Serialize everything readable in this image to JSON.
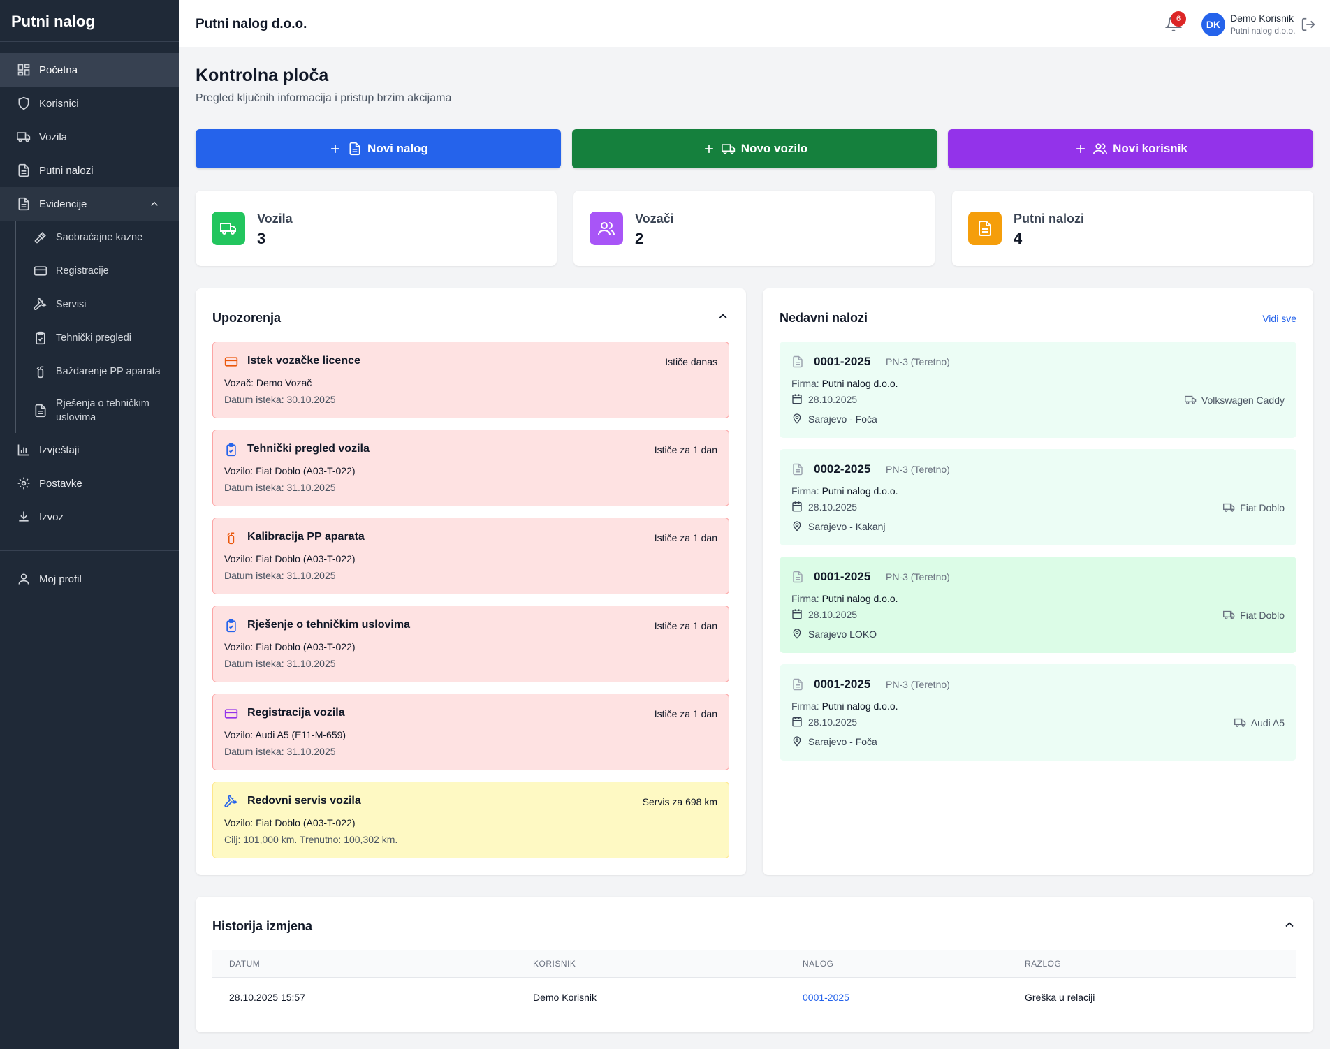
{
  "sidebar": {
    "brand": "Putni nalog",
    "items": [
      {
        "label": "Početna",
        "icon": "dashboard-icon"
      },
      {
        "label": "Korisnici",
        "icon": "shield-icon"
      },
      {
        "label": "Vozila",
        "icon": "truck-icon"
      },
      {
        "label": "Putni nalozi",
        "icon": "document-icon"
      },
      {
        "label": "Evidencije",
        "icon": "document-icon"
      }
    ],
    "sub_items": [
      {
        "label": "Saobraćajne kazne",
        "icon": "gavel-icon"
      },
      {
        "label": "Registracije",
        "icon": "credit-card-icon"
      },
      {
        "label": "Servisi",
        "icon": "wrench-icon"
      },
      {
        "label": "Tehnički pregledi",
        "icon": "clipboard-check-icon"
      },
      {
        "label": "Baždarenje PP aparata",
        "icon": "fire-extinguisher-icon"
      },
      {
        "label": "Rješenja o tehničkim uslovima",
        "icon": "document-icon"
      }
    ],
    "bottom_items": [
      {
        "label": "Izvještaji",
        "icon": "bar-chart-icon"
      },
      {
        "label": "Postavke",
        "icon": "gear-icon"
      },
      {
        "label": "Izvoz",
        "icon": "download-icon"
      }
    ],
    "profile": {
      "label": "Moj profil",
      "icon": "user-icon"
    }
  },
  "header": {
    "title": "Putni nalog d.o.o.",
    "notification_count": "6",
    "avatar_initials": "DK",
    "user_name": "Demo Korisnik",
    "user_company": "Putni nalog d.o.o."
  },
  "page": {
    "title": "Kontrolna ploča",
    "subtitle": "Pregled ključnih informacija i pristup brzim akcijama"
  },
  "actions": {
    "new_order": "Novi nalog",
    "new_vehicle": "Novo vozilo",
    "new_user": "Novi korisnik"
  },
  "stats": [
    {
      "label": "Vozila",
      "value": "3",
      "color": "#22c55e"
    },
    {
      "label": "Vozači",
      "value": "2",
      "color": "#a855f7"
    },
    {
      "label": "Putni nalozi",
      "value": "4",
      "color": "#f59e0b"
    }
  ],
  "warnings": {
    "title": "Upozorenja",
    "items": [
      {
        "title": "Istek vozačke licence",
        "right": "Ističe danas",
        "line1": "Vozač: Demo Vozač",
        "line2": "Datum isteka: 30.10.2025",
        "icon": "credit-card-icon",
        "tone": "red"
      },
      {
        "title": "Tehnički pregled vozila",
        "right": "Ističe za 1 dan",
        "line1": "Vozilo: Fiat Doblo (A03-T-022)",
        "line2": "Datum isteka: 31.10.2025",
        "icon": "clipboard-check-icon",
        "tone": "red"
      },
      {
        "title": "Kalibracija PP aparata",
        "right": "Ističe za 1 dan",
        "line1": "Vozilo: Fiat Doblo (A03-T-022)",
        "line2": "Datum isteka: 31.10.2025",
        "icon": "fire-extinguisher-icon",
        "tone": "red"
      },
      {
        "title": "Rješenje o tehničkim uslovima",
        "right": "Ističe za 1 dan",
        "line1": "Vozilo: Fiat Doblo (A03-T-022)",
        "line2": "Datum isteka: 31.10.2025",
        "icon": "clipboard-check-icon",
        "tone": "red"
      },
      {
        "title": "Registracija vozila",
        "right": "Ističe za 1 dan",
        "line1": "Vozilo: Audi A5 (E11-M-659)",
        "line2": "Datum isteka: 31.10.2025",
        "icon": "credit-card-icon",
        "tone": "red"
      },
      {
        "title": "Redovni servis vozila",
        "right": "Servis za 698 km",
        "line1": "Vozilo: Fiat Doblo (A03-T-022)",
        "line2": "Cilj: 101,000 km. Trenutno: 100,302 km.",
        "icon": "wrench-icon",
        "tone": "yellow"
      }
    ]
  },
  "recent": {
    "title": "Nedavni nalozi",
    "view_all": "Vidi sve",
    "firm_label": "Firma:",
    "items": [
      {
        "number": "0001-2025",
        "type": "PN-3 (Teretno)",
        "firm": "Putni nalog d.o.o.",
        "date": "28.10.2025",
        "route": "Sarajevo - Foča",
        "vehicle": "Volkswagen Caddy"
      },
      {
        "number": "0002-2025",
        "type": "PN-3 (Teretno)",
        "firm": "Putni nalog d.o.o.",
        "date": "28.10.2025",
        "route": "Sarajevo - Kakanj",
        "vehicle": "Fiat Doblo"
      },
      {
        "number": "0001-2025",
        "type": "PN-3 (Teretno)",
        "firm": "Putni nalog d.o.o.",
        "date": "28.10.2025",
        "route": "Sarajevo LOKO",
        "vehicle": "Fiat Doblo"
      },
      {
        "number": "0001-2025",
        "type": "PN-3 (Teretno)",
        "firm": "Putni nalog d.o.o.",
        "date": "28.10.2025",
        "route": "Sarajevo - Foča",
        "vehicle": "Audi A5"
      }
    ]
  },
  "history": {
    "title": "Historija izmjena",
    "columns": [
      "DATUM",
      "KORISNIK",
      "NALOG",
      "RAZLOG"
    ],
    "rows": [
      {
        "date": "28.10.2025 15:57",
        "user": "Demo Korisnik",
        "order": "0001-2025",
        "reason": "Greška u relaciji"
      }
    ]
  }
}
